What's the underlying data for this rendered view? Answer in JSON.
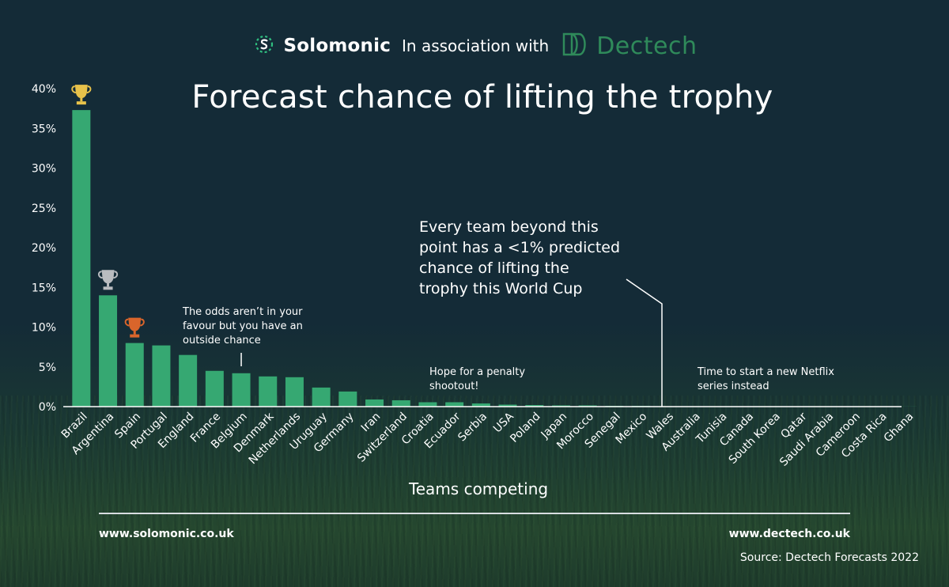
{
  "header": {
    "brand_left": "Solomonic",
    "association_text": "In association with",
    "brand_right": "Dectech"
  },
  "footer": {
    "url_left": "www.solomonic.co.uk",
    "url_right": "www.dectech.co.uk",
    "source": "Source: Dectech Forecasts 2022"
  },
  "annotations": {
    "outside_chance": [
      "The odds aren’t in your",
      "favour but you have an",
      "outside chance"
    ],
    "penalty": [
      "Hope for a penalty",
      "shootout!"
    ],
    "beyond_point": [
      "Every team beyond this",
      "point has a <1% predicted",
      "chance of lifting the",
      "trophy this World Cup"
    ],
    "netflix": [
      "Time to start a new Netflix",
      "series instead"
    ]
  },
  "trophies": [
    {
      "team": "Brazil",
      "medal": "gold",
      "color": "#e8c24a",
      "icon": "trophy-icon"
    },
    {
      "team": "Argentina",
      "medal": "silver",
      "color": "#b9bcc0",
      "icon": "trophy-icon"
    },
    {
      "team": "Spain",
      "medal": "bronze",
      "color": "#d9652b",
      "icon": "trophy-icon"
    }
  ],
  "colors": {
    "bar": "#36a872",
    "axis": "#ffffff",
    "dectech": "#2f8a5a",
    "solomonic_logo": "#2fbf80"
  },
  "chart_data": {
    "type": "bar",
    "title": "Forecast chance of lifting the trophy",
    "xlabel": "Teams competing",
    "ylabel": "",
    "ylim": [
      0,
      40
    ],
    "yticks": [
      "0%",
      "5%",
      "10%",
      "15%",
      "20%",
      "25%",
      "30%",
      "35%",
      "40%"
    ],
    "grid": false,
    "categories": [
      "Brazil",
      "Argentina",
      "Spain",
      "Portugal",
      "England",
      "France",
      "Belgium",
      "Denmark",
      "Netherlands",
      "Uruguay",
      "Germany",
      "Iran",
      "Switzerland",
      "Croatia",
      "Ecuador",
      "Serbia",
      "USA",
      "Poland",
      "Japan",
      "Morocco",
      "Senegal",
      "Mexico",
      "Wales",
      "Australia",
      "Tunisia",
      "Canada",
      "South Korea",
      "Qatar",
      "Saudi Arabia",
      "Cameroon",
      "Costa Rica",
      "Ghana"
    ],
    "values": [
      37.3,
      14.0,
      8.0,
      7.7,
      6.5,
      4.5,
      4.2,
      3.8,
      3.7,
      2.4,
      1.9,
      0.9,
      0.8,
      0.55,
      0.55,
      0.4,
      0.25,
      0.2,
      0.15,
      0.15,
      0.1,
      0.1,
      0.05,
      0.03,
      0.02,
      0.02,
      0.02,
      0.01,
      0.01,
      0.01,
      0.01,
      0.01
    ]
  }
}
